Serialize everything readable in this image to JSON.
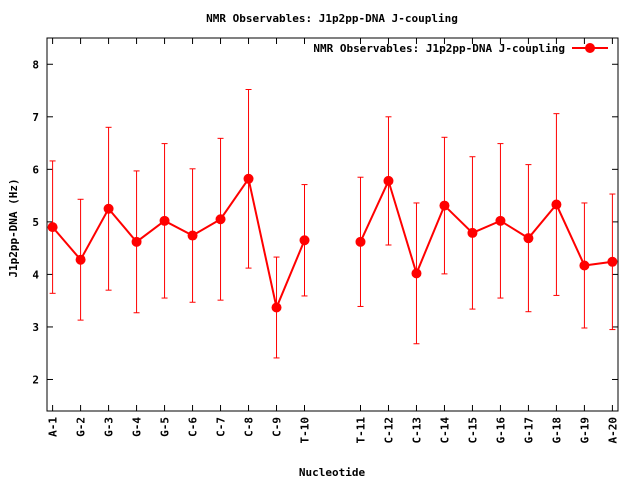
{
  "chart_data": {
    "type": "line",
    "title": "NMR Observables: J1p2pp-DNA J-coupling",
    "xlabel": "Nucleotide",
    "ylabel": "J1p2pp-DNA (Hz)",
    "ylim": [
      1.4,
      8.5
    ],
    "yticks": [
      2,
      3,
      4,
      5,
      6,
      7,
      8
    ],
    "legend_position": "top-right",
    "grid": false,
    "categories": [
      "A-1",
      "G-2",
      "G-3",
      "G-4",
      "G-5",
      "C-6",
      "C-7",
      "C-8",
      "C-9",
      "T-10",
      "T-11",
      "C-12",
      "C-13",
      "C-14",
      "C-15",
      "G-16",
      "G-17",
      "G-18",
      "G-19",
      "A-20"
    ],
    "x_positions": [
      1,
      2,
      3,
      4,
      5,
      6,
      7,
      8,
      9,
      10,
      12,
      13,
      14,
      15,
      16,
      17,
      18,
      19,
      20,
      21
    ],
    "segments": [
      [
        0,
        9
      ],
      [
        10,
        19
      ]
    ],
    "series": [
      {
        "name": "NMR Observables: J1p2pp-DNA J-coupling",
        "color": "#ff0000",
        "values": [
          4.9,
          4.28,
          5.25,
          4.62,
          5.02,
          4.74,
          5.05,
          5.82,
          3.37,
          4.65,
          4.62,
          5.78,
          4.02,
          5.31,
          4.79,
          5.02,
          4.69,
          5.33,
          4.17,
          4.24
        ],
        "errors": [
          1.26,
          1.15,
          1.55,
          1.35,
          1.47,
          1.27,
          1.54,
          1.7,
          0.96,
          1.06,
          1.23,
          1.22,
          1.34,
          1.3,
          1.45,
          1.47,
          1.4,
          1.73,
          1.19,
          1.29
        ]
      }
    ]
  }
}
